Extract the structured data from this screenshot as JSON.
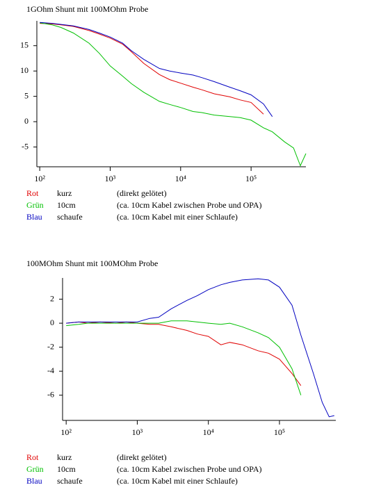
{
  "chart_data": [
    {
      "type": "line",
      "title": "1GOhm Shunt mit 100MOhm Probe",
      "log_x": true,
      "x": [
        100,
        150,
        200,
        300,
        500,
        700,
        1000,
        1500,
        2000,
        3000,
        5000,
        7000,
        10000,
        15000,
        20000,
        30000,
        50000,
        70000,
        100000,
        150000,
        200000,
        300000,
        400000,
        500000,
        600000
      ],
      "series": [
        {
          "name": "Rot",
          "color": "#e00000",
          "cable": "kurz",
          "note": "(direkt gelötet)",
          "values": [
            19.4,
            19.3,
            19.1,
            18.8,
            18.0,
            17.3,
            16.5,
            15.3,
            13.8,
            11.5,
            9.3,
            8.3,
            7.6,
            6.8,
            6.3,
            5.5,
            4.9,
            4.3,
            3.8,
            1.5,
            null,
            null,
            null,
            null,
            null
          ]
        },
        {
          "name": "Grün",
          "color": "#00c000",
          "cable": "10cm",
          "note": "(ca. 10cm Kabel zwischen Probe und OPA)",
          "values": [
            19.5,
            19.1,
            18.6,
            17.5,
            15.5,
            13.5,
            11.0,
            9.0,
            7.5,
            5.8,
            4.0,
            3.4,
            2.8,
            2.0,
            1.8,
            1.3,
            1.0,
            0.8,
            0.3,
            -1.2,
            -2.0,
            -4.0,
            -5.2,
            -8.7,
            -6.3
          ]
        },
        {
          "name": "Blau",
          "color": "#0000c0",
          "cable": "schaufe",
          "note": "(ca. 10cm Kabel mit einer Schlaufe)",
          "values": [
            19.6,
            19.4,
            19.2,
            18.9,
            18.2,
            17.5,
            16.7,
            15.5,
            14.0,
            12.3,
            10.5,
            10.0,
            9.6,
            9.2,
            8.7,
            7.9,
            6.8,
            6.1,
            5.3,
            3.5,
            1.0,
            null,
            null,
            null,
            null
          ]
        }
      ],
      "xlim": [
        91,
        600000
      ],
      "xticks": [
        {
          "value": 100,
          "label": "10²"
        },
        {
          "value": 1000,
          "label": "10³"
        },
        {
          "value": 10000,
          "label": "10⁴"
        },
        {
          "value": 100000,
          "label": "10⁵"
        }
      ],
      "ylim": [
        -8.9,
        19.9
      ],
      "yticks": [
        -5,
        0,
        5,
        10,
        15
      ]
    },
    {
      "type": "line",
      "title": "100MOhm Shunt mit 100MOhm Probe",
      "log_x": true,
      "x": [
        100,
        150,
        200,
        300,
        500,
        700,
        1000,
        1500,
        2000,
        3000,
        5000,
        7000,
        10000,
        15000,
        20000,
        30000,
        50000,
        70000,
        100000,
        150000,
        200000,
        300000,
        400000,
        500000,
        590000
      ],
      "series": [
        {
          "name": "Rot",
          "color": "#e00000",
          "cable": "kurz",
          "note": "(direkt gelötet)",
          "values": [
            0,
            0.1,
            0,
            0.1,
            0,
            0.1,
            0,
            -0.1,
            -0.1,
            -0.3,
            -0.6,
            -0.9,
            -1.1,
            -1.8,
            -1.6,
            -1.8,
            -2.3,
            -2.5,
            -3.0,
            -4.2,
            -5.2,
            null,
            null,
            null,
            null
          ]
        },
        {
          "name": "Grün",
          "color": "#00c000",
          "cable": "10cm",
          "note": "(ca. 10cm Kabel zwischen Probe und OPA)",
          "values": [
            -0.2,
            -0.1,
            0,
            0,
            0,
            0,
            0,
            0,
            0,
            0.2,
            0.2,
            0.1,
            0,
            -0.1,
            0,
            -0.3,
            -0.8,
            -1.2,
            -2.0,
            -3.8,
            -6.0,
            null,
            null,
            null,
            null
          ]
        },
        {
          "name": "Blau",
          "color": "#0000c0",
          "cable": "schaufe",
          "note": "(ca. 10cm Kabel mit einer Schlaufe)",
          "values": [
            0,
            0.1,
            0.1,
            0.1,
            0.1,
            0.1,
            0.1,
            0.4,
            0.5,
            1.2,
            1.9,
            2.3,
            2.8,
            3.2,
            3.4,
            3.6,
            3.7,
            3.6,
            3.0,
            1.5,
            -1.0,
            -4.2,
            -6.6,
            -7.8,
            -7.7
          ]
        }
      ],
      "xlim": [
        89,
        620000
      ],
      "xticks": [
        {
          "value": 100,
          "label": "10²"
        },
        {
          "value": 1000,
          "label": "10³"
        },
        {
          "value": 10000,
          "label": "10⁴"
        },
        {
          "value": 100000,
          "label": "10⁵"
        }
      ],
      "ylim": [
        -8.1,
        3.77
      ],
      "yticks": [
        -6,
        -4,
        -2,
        0,
        2
      ]
    }
  ]
}
